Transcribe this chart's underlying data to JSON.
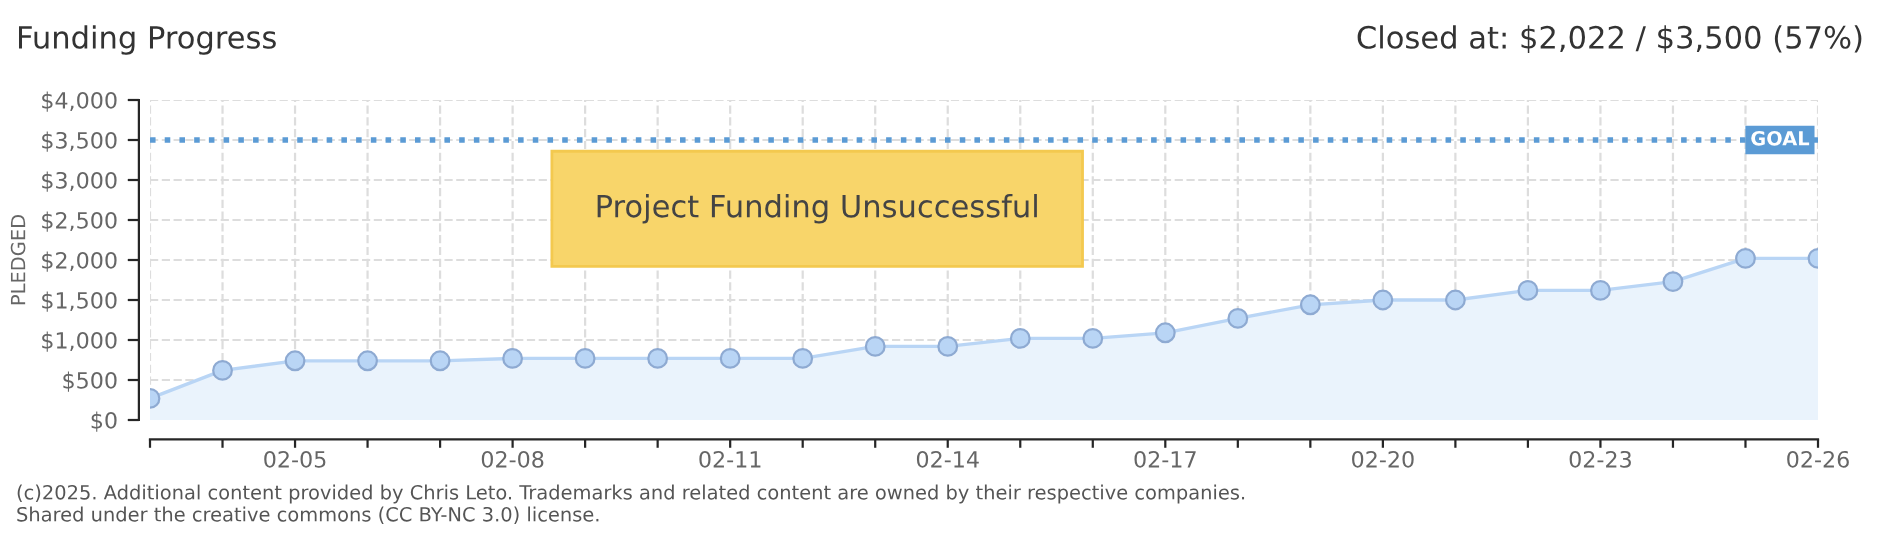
{
  "chart_data": {
    "type": "area",
    "title": "Funding Progress",
    "ylabel": "PLEDGED",
    "annotations": [
      "Closed at: $2,022 / $3,500 (57%)",
      "Project Funding Unsuccessful",
      "(c)2025. Additional content provided by Chris Leto. Trademarks and related content are owned by their respective companies.",
      "Shared under the creative commons (CC BY-NC 3.0) license."
    ],
    "categories": [
      null,
      null,
      "02-05",
      null,
      null,
      "02-08",
      null,
      null,
      "02-11",
      null,
      null,
      "02-14",
      null,
      null,
      "02-17",
      null,
      null,
      "02-20",
      null,
      null,
      "02-23",
      null,
      null,
      "02-26"
    ],
    "series": [
      {
        "color": "#eaf3fc",
        "values": [
          270,
          620,
          740,
          740,
          740,
          770,
          770,
          770,
          770,
          770,
          920,
          920,
          1020,
          1020,
          1090,
          1270,
          1440,
          1500,
          1500,
          1620,
          1620,
          1730,
          2020,
          2020
        ]
      }
    ],
    "ylim": [
      0,
      4000
    ],
    "yticks": [
      {
        "value": 0,
        "label": "$0"
      },
      {
        "value": 500,
        "label": "$500"
      },
      {
        "value": 1000,
        "label": "$1,000"
      },
      {
        "value": 1500,
        "label": "$1,500"
      },
      {
        "value": 2000,
        "label": "$2,000"
      },
      {
        "value": 2500,
        "label": "$2,500"
      },
      {
        "value": 3000,
        "label": "$3,000"
      },
      {
        "value": 3500,
        "label": "$3,500"
      },
      {
        "value": 4000,
        "label": "$4,000"
      }
    ],
    "ref_lines": [
      {
        "axis": "y",
        "value": 3500,
        "label": "GOAL",
        "color": "#5b9bd5",
        "line_style": "dotted"
      }
    ],
    "grid": true,
    "marker": "circle",
    "line_style": "solid"
  }
}
